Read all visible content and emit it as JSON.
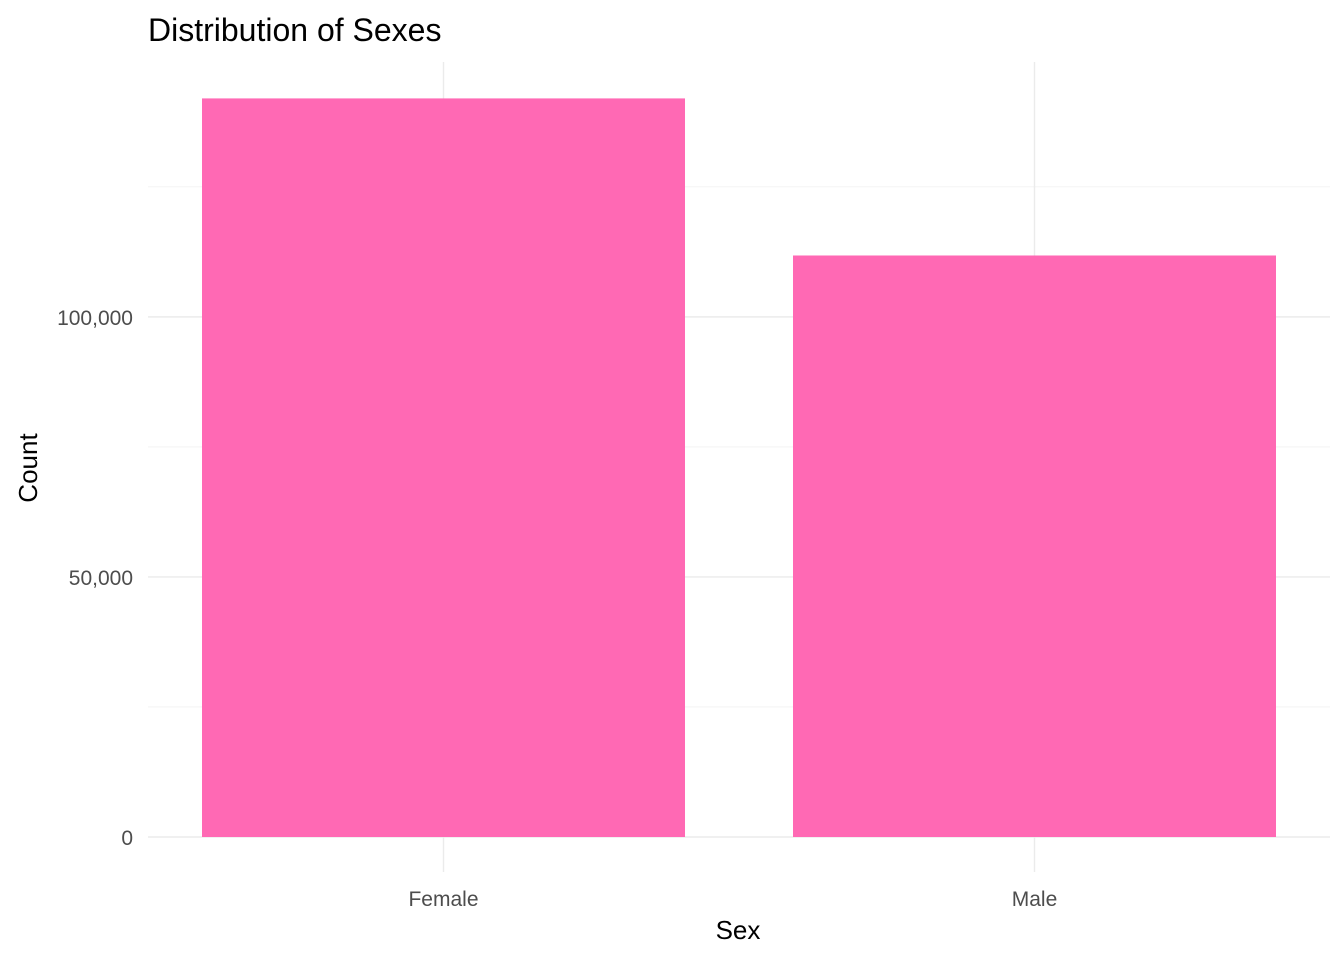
{
  "chart_data": {
    "type": "bar",
    "title": "Distribution of Sexes",
    "xlabel": "Sex",
    "ylabel": "Count",
    "categories": [
      "Female",
      "Male"
    ],
    "values": [
      142000,
      111800
    ],
    "ylim": [
      0,
      149000
    ],
    "y_ticks": [
      0,
      50000,
      100000
    ],
    "y_tick_labels": [
      "0",
      "50,000",
      "100,000"
    ],
    "bar_color": "#ff69b4",
    "grid": true,
    "legend": "none"
  }
}
